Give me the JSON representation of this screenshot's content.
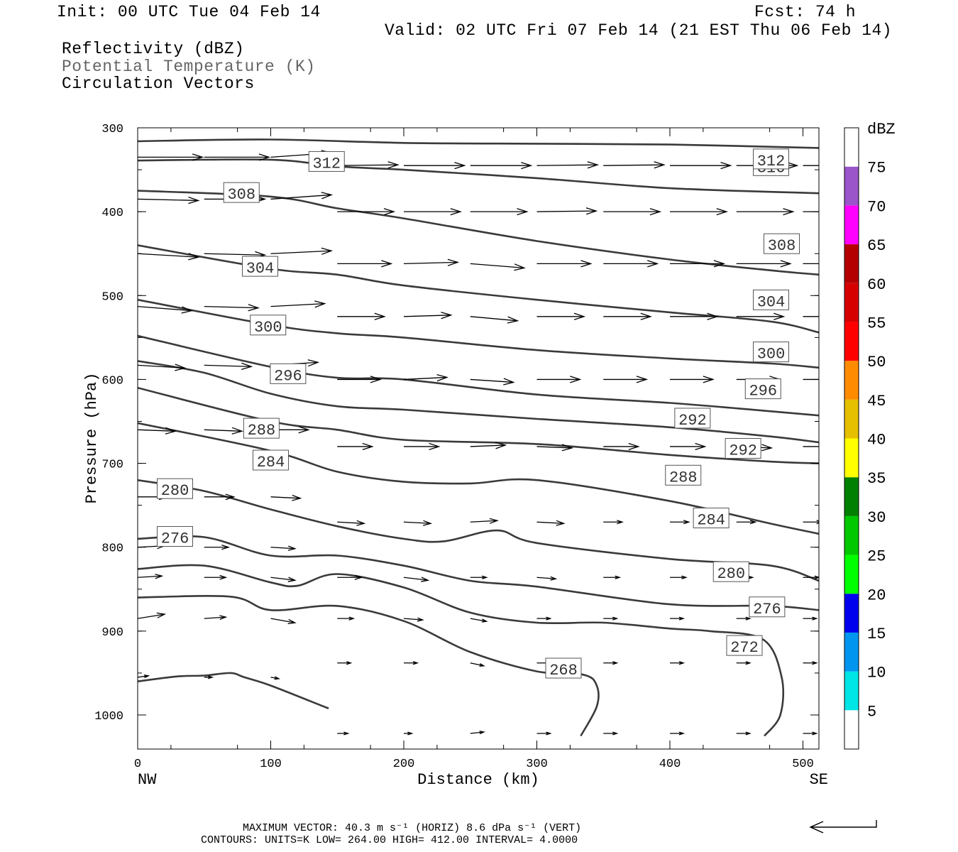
{
  "header": {
    "init": "Init: 00 UTC Tue 04 Feb 14",
    "fcst": "Fcst:   74 h",
    "valid": "Valid: 02 UTC Fri 07 Feb 14 (21 EST Thu 06 Feb 14)",
    "field1": "Reflectivity (dBZ)",
    "field2": "Potential Temperature (K)",
    "field3": "Circulation Vectors"
  },
  "footer": {
    "max_vector": "MAXIMUM VECTOR:  40.3 m s⁻¹ (HORIZ)         8.6 dPa s⁻¹ (VERT)",
    "contours": "CONTOURS:  UNITS=K  LOW=  264.00       HIGH=  412.00         INTERVAL=    4.0000"
  },
  "chart_data": {
    "type": "contour cross-section",
    "xlabel": "Distance (km)",
    "ylabel": "Pressure (hPa)",
    "xlim": [
      0,
      512
    ],
    "ylim": [
      1040,
      300
    ],
    "x_ticks": [
      0,
      100,
      200,
      300,
      400,
      500
    ],
    "x_tick_labels": [
      "0",
      "100",
      "200",
      "300",
      "400",
      "500"
    ],
    "y_ticks": [
      300,
      400,
      500,
      600,
      700,
      800,
      900,
      1000
    ],
    "y_tick_labels": [
      "300",
      "400",
      "500",
      "600",
      "700",
      "800",
      "900",
      "1000"
    ],
    "left_end_label": "NW",
    "right_end_label": "SE",
    "colorbar": {
      "title": "dBZ",
      "levels": [
        5,
        10,
        15,
        20,
        25,
        30,
        35,
        40,
        45,
        50,
        55,
        60,
        65,
        70,
        75
      ],
      "colors": [
        "#ffffff",
        "#00e5e5",
        "#0096f0",
        "#0000ee",
        "#00ff00",
        "#00c800",
        "#008000",
        "#ffff00",
        "#e5c000",
        "#ff8c00",
        "#ff0000",
        "#d70000",
        "#b40000",
        "#ff00ff",
        "#9955c9",
        "#ffffff"
      ]
    },
    "theta_contours": [
      {
        "value": 316,
        "points": [
          [
            0,
            316
          ],
          [
            100,
            314
          ],
          [
            200,
            318
          ],
          [
            300,
            319
          ],
          [
            400,
            320
          ],
          [
            512,
            324
          ]
        ],
        "labels": [
          [
            476,
            346
          ]
        ]
      },
      {
        "value": 312,
        "points": [
          [
            0,
            339
          ],
          [
            100,
            338
          ],
          [
            150,
            346
          ],
          [
            200,
            350
          ],
          [
            300,
            360
          ],
          [
            400,
            372
          ],
          [
            512,
            378
          ]
        ],
        "labels": [
          [
            142,
            341
          ],
          [
            476,
            338
          ]
        ]
      },
      {
        "value": 308,
        "points": [
          [
            0,
            375
          ],
          [
            100,
            382
          ],
          [
            150,
            396
          ],
          [
            200,
            408
          ],
          [
            300,
            435
          ],
          [
            400,
            457
          ],
          [
            476,
            470
          ],
          [
            512,
            475
          ]
        ],
        "labels": [
          [
            78,
            378
          ],
          [
            484,
            439
          ]
        ]
      },
      {
        "value": 304,
        "points": [
          [
            0,
            440
          ],
          [
            100,
            468
          ],
          [
            150,
            475
          ],
          [
            200,
            488
          ],
          [
            300,
            505
          ],
          [
            400,
            520
          ],
          [
            476,
            531
          ],
          [
            512,
            544
          ]
        ],
        "labels": [
          [
            92,
            466
          ],
          [
            476,
            506
          ]
        ]
      },
      {
        "value": 300,
        "points": [
          [
            0,
            505
          ],
          [
            100,
            535
          ],
          [
            150,
            545
          ],
          [
            200,
            550
          ],
          [
            300,
            565
          ],
          [
            400,
            575
          ],
          [
            476,
            581
          ],
          [
            512,
            586
          ]
        ],
        "labels": [
          [
            98,
            536
          ],
          [
            476,
            568
          ]
        ]
      },
      {
        "value": 296,
        "points": [
          [
            0,
            548
          ],
          [
            100,
            585
          ],
          [
            150,
            598
          ],
          [
            200,
            600
          ],
          [
            300,
            618
          ],
          [
            400,
            628
          ],
          [
            476,
            638
          ],
          [
            512,
            643
          ]
        ],
        "labels": [
          [
            113,
            594
          ],
          [
            470,
            612
          ]
        ]
      },
      {
        "value": 292,
        "points": [
          [
            0,
            578
          ],
          [
            50,
            592
          ],
          [
            100,
            617
          ],
          [
            150,
            632
          ],
          [
            200,
            636
          ],
          [
            300,
            647
          ],
          [
            400,
            657
          ],
          [
            476,
            668
          ],
          [
            512,
            675
          ]
        ],
        "labels": [
          [
            417,
            647
          ],
          [
            455,
            683
          ]
        ]
      },
      {
        "value": 288,
        "points": [
          [
            0,
            610
          ],
          [
            100,
            650
          ],
          [
            150,
            660
          ],
          [
            200,
            672
          ],
          [
            300,
            677
          ],
          [
            400,
            690
          ],
          [
            476,
            698
          ],
          [
            512,
            700
          ]
        ],
        "labels": [
          [
            93,
            659
          ],
          [
            410,
            715
          ]
        ]
      },
      {
        "value": 284,
        "points": [
          [
            0,
            652
          ],
          [
            100,
            685
          ],
          [
            150,
            710
          ],
          [
            200,
            722
          ],
          [
            250,
            724
          ],
          [
            300,
            720
          ],
          [
            400,
            745
          ],
          [
            476,
            772
          ],
          [
            512,
            784
          ]
        ],
        "labels": [
          [
            100,
            697
          ],
          [
            431,
            766
          ]
        ]
      },
      {
        "value": 280,
        "points": [
          [
            0,
            720
          ],
          [
            50,
            733
          ],
          [
            100,
            755
          ],
          [
            150,
            775
          ],
          [
            200,
            790
          ],
          [
            230,
            793
          ],
          [
            270,
            780
          ],
          [
            300,
            795
          ],
          [
            400,
            814
          ],
          [
            476,
            822
          ],
          [
            512,
            840
          ]
        ],
        "labels": [
          [
            28,
            731
          ],
          [
            446,
            830
          ]
        ]
      },
      {
        "value": 276,
        "points": [
          [
            0,
            790
          ],
          [
            50,
            788
          ],
          [
            100,
            810
          ],
          [
            150,
            810
          ],
          [
            200,
            822
          ],
          [
            250,
            840
          ],
          [
            300,
            847
          ],
          [
            400,
            868
          ],
          [
            476,
            870
          ],
          [
            512,
            875
          ]
        ],
        "labels": [
          [
            28,
            788
          ],
          [
            473,
            872
          ]
        ]
      },
      {
        "value": 272,
        "points": [
          [
            0,
            826
          ],
          [
            50,
            822
          ],
          [
            100,
            842
          ],
          [
            120,
            846
          ],
          [
            150,
            832
          ],
          [
            200,
            848
          ],
          [
            250,
            878
          ],
          [
            300,
            890
          ],
          [
            350,
            890
          ],
          [
            400,
            897
          ],
          [
            430,
            900
          ],
          [
            470,
            910
          ],
          [
            484,
            955
          ],
          [
            483,
            1000
          ],
          [
            471,
            1025
          ]
        ],
        "labels": [
          [
            456,
            918
          ]
        ]
      },
      {
        "value": 268,
        "points": [
          [
            0,
            860
          ],
          [
            70,
            859
          ],
          [
            100,
            875
          ],
          [
            150,
            870
          ],
          [
            200,
            888
          ],
          [
            250,
            925
          ],
          [
            300,
            948
          ],
          [
            335,
            952
          ],
          [
            345,
            965
          ],
          [
            345,
            990
          ],
          [
            333,
            1025
          ]
        ],
        "labels": [
          [
            320,
            945
          ]
        ]
      },
      {
        "value": 264,
        "points": [
          [
            0,
            960
          ],
          [
            30,
            954
          ],
          [
            50,
            953
          ],
          [
            70,
            950
          ],
          [
            80,
            955
          ],
          [
            100,
            965
          ],
          [
            140,
            990
          ],
          [
            140,
            990
          ],
          [
            140,
            990
          ],
          [
            140,
            990
          ]
        ],
        "labels": []
      }
    ],
    "vectors": {
      "x": [
        0,
        50,
        100,
        150,
        200,
        250,
        300,
        350,
        400,
        450,
        500
      ],
      "levels": [
        {
          "p": 335,
          "dx": [
            48,
            48,
            45,
            0,
            45,
            45,
            45,
            45,
            45,
            45,
            45
          ],
          "dy": [
            0,
            0,
            -6,
            0,
            0,
            0,
            -1,
            -2,
            0,
            0,
            0
          ],
          "style": "upper"
        },
        {
          "p": 380,
          "dx": [
            45,
            45,
            45,
            0,
            0,
            0,
            0,
            0,
            0,
            0,
            0
          ],
          "dy": [
            2,
            0,
            -1,
            0,
            0,
            0,
            0,
            0,
            0,
            0,
            0
          ]
        },
        {
          "p": 400,
          "dx": [
            0,
            0,
            0,
            42,
            42,
            42,
            44,
            42,
            42,
            42,
            42
          ],
          "dy": [
            0,
            0,
            0,
            0,
            0,
            0,
            -1,
            0,
            0,
            0,
            0
          ]
        },
        {
          "p": 450,
          "dx": [
            45,
            45,
            45,
            40,
            40,
            40,
            40,
            40,
            40,
            40,
            40
          ],
          "dy": [
            5,
            2,
            -4,
            0,
            -2,
            6,
            0,
            0,
            0,
            0,
            0
          ]
        }
      ]
    },
    "vector_note": "Circulation vectors shown at regular grid points; arrow length and direction follow the horizontal and vertical components."
  }
}
